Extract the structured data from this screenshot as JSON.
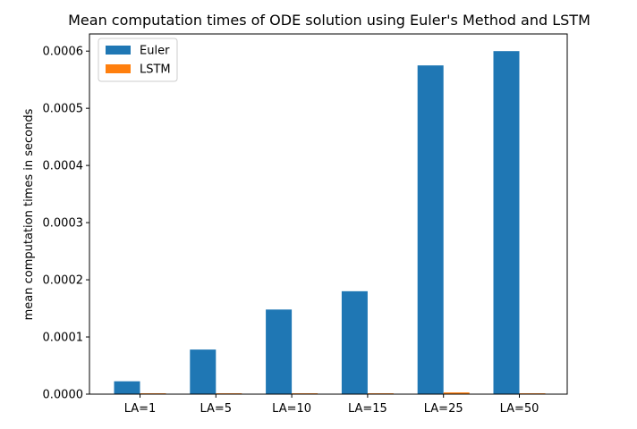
{
  "chart_data": {
    "type": "bar",
    "title": "Mean computation times of ODE solution using Euler's Method and LSTM",
    "xlabel": "",
    "ylabel": "mean computation times in seconds",
    "categories": [
      "LA=1",
      "LA=5",
      "LA=10",
      "LA=15",
      "LA=25",
      "LA=50"
    ],
    "series": [
      {
        "name": "Euler",
        "color": "#1f77b4",
        "values": [
          2.25e-05,
          7.8e-05,
          0.000148,
          0.00018,
          0.000575,
          0.0006
        ]
      },
      {
        "name": "LSTM",
        "color": "#ff7f0e",
        "values": [
          1.5e-06,
          1.5e-06,
          1.5e-06,
          1.5e-06,
          3e-06,
          1.5e-06
        ]
      }
    ],
    "ylim": [
      0,
      0.00063
    ],
    "yticks": [
      0,
      0.0001,
      0.0002,
      0.0003,
      0.0004,
      0.0005,
      0.0006
    ],
    "ytick_labels": [
      "0.0000",
      "0.0001",
      "0.0002",
      "0.0003",
      "0.0004",
      "0.0005",
      "0.0006"
    ],
    "grid": false,
    "legend_position": "top-left"
  }
}
